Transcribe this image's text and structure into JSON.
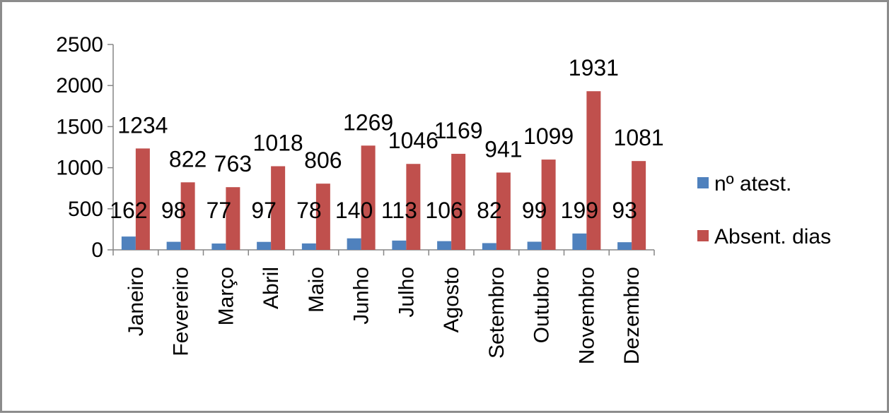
{
  "chart_data": {
    "type": "bar",
    "categories": [
      "Janeiro",
      "Fevereiro",
      "Março",
      "Abril",
      "Maio",
      "Junho",
      "Julho",
      "Agosto",
      "Setembro",
      "Outubro",
      "Novembro",
      "Dezembro"
    ],
    "series": [
      {
        "name": "nº atest.",
        "color": "#4f81bd",
        "values": [
          162,
          98,
          77,
          97,
          78,
          140,
          113,
          106,
          82,
          99,
          199,
          93
        ]
      },
      {
        "name": "Absent. dias",
        "color": "#c0504d",
        "values": [
          1234,
          822,
          763,
          1018,
          806,
          1269,
          1046,
          1169,
          941,
          1099,
          1931,
          1081
        ]
      }
    ],
    "ylim": [
      0,
      2500
    ],
    "yticks": [
      0,
      500,
      1000,
      1500,
      2000,
      2500
    ],
    "title": "",
    "xlabel": "",
    "ylabel": "",
    "grid": false,
    "legend_position": "right"
  }
}
